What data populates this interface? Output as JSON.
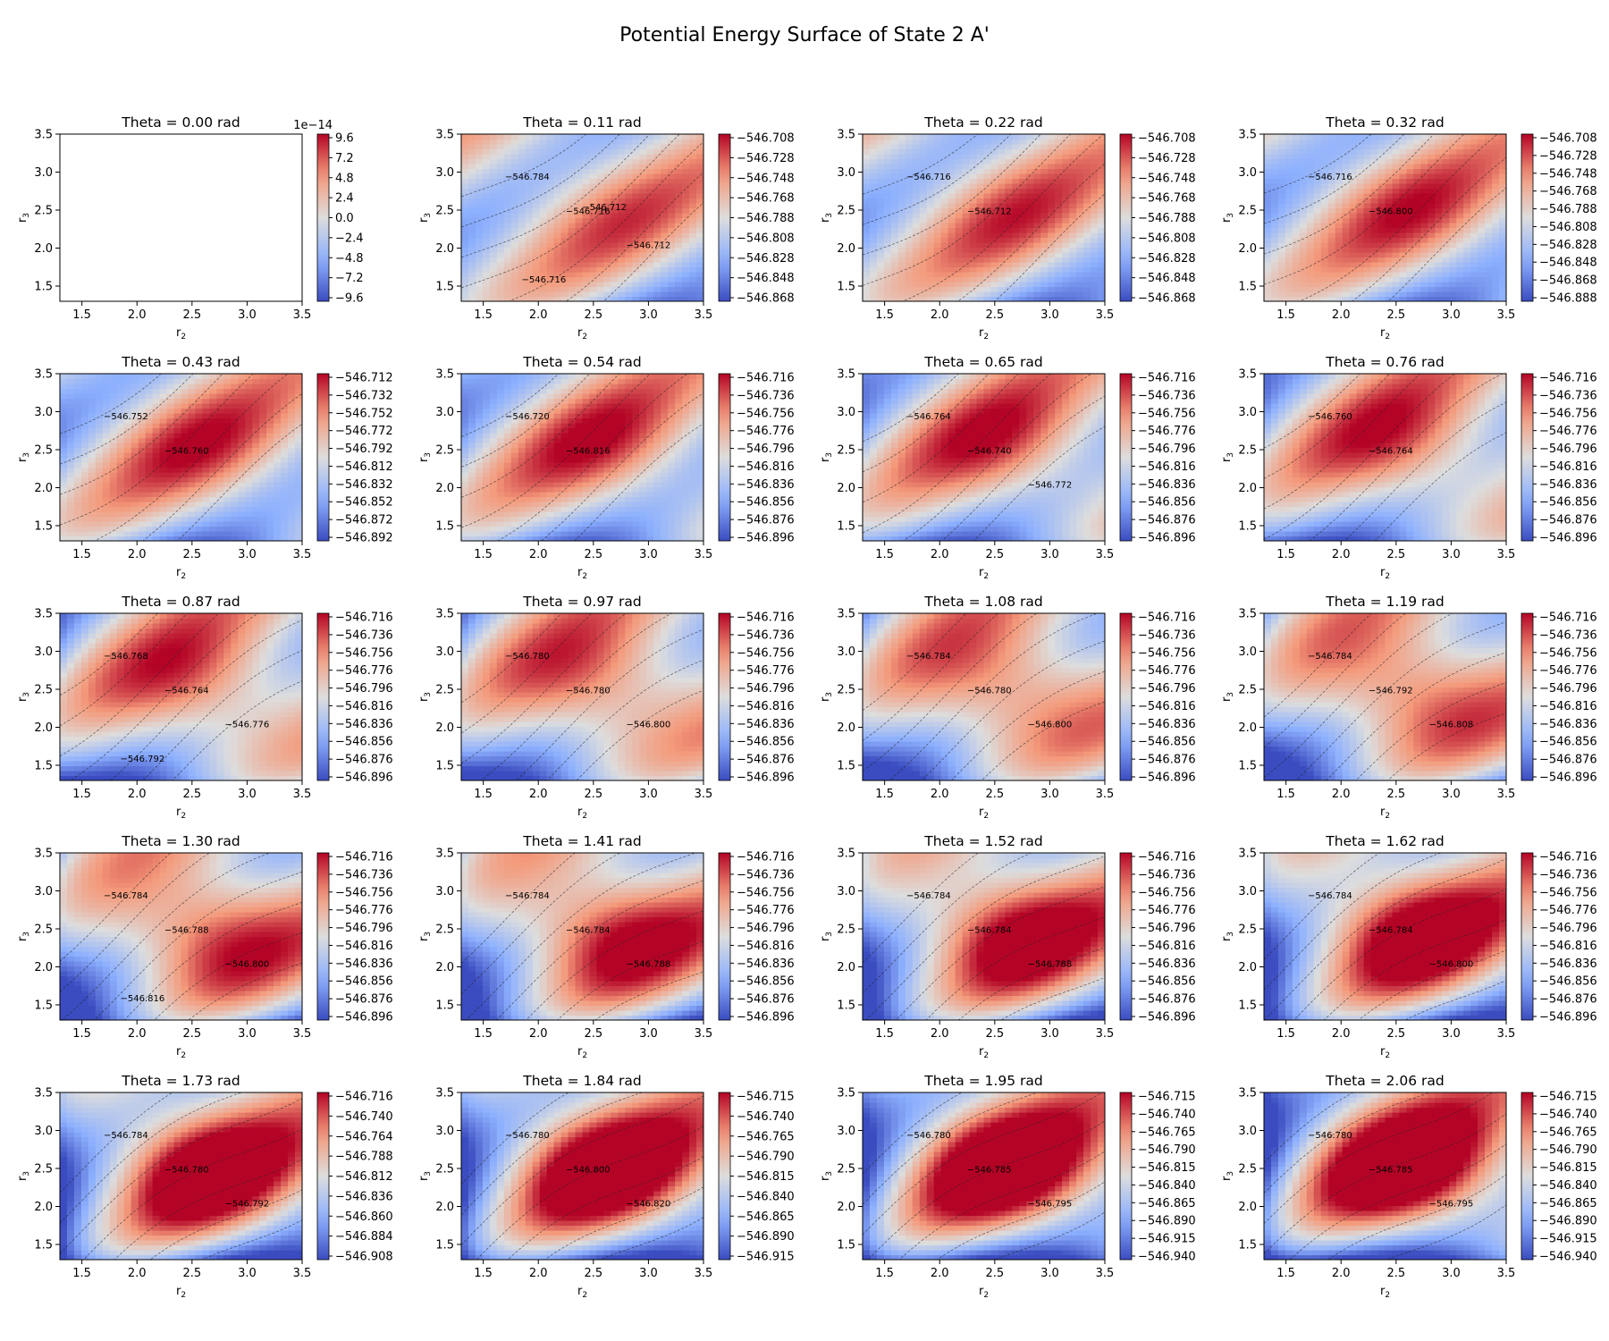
{
  "title": "Potential Energy Surface of State 2 A'",
  "chart_data": {
    "type": "heatmap",
    "title": "Potential Energy Surface of State 2 A'",
    "xlabel": "r2",
    "ylabel": "r3",
    "xlim": [
      1.3,
      3.5
    ],
    "ylim": [
      1.3,
      3.5
    ],
    "x_ticks": [
      "1.5",
      "2.0",
      "2.5",
      "3.0",
      "3.5"
    ],
    "y_ticks": [
      "1.5",
      "2.0",
      "2.5",
      "3.0",
      "3.5"
    ],
    "colormap": "coolwarm",
    "colors": {
      "low": "#3b4cc0",
      "mid": "#dddddd",
      "high": "#b40426",
      "nodata": "#ffffff"
    },
    "panels": [
      {
        "title": "Theta = 0.00 rad",
        "theta": 0.0,
        "cbar_offset": "1e−14",
        "cbar_ticks": [
          "9.6",
          "7.2",
          "4.8",
          "2.4",
          "0.0",
          "−2.4",
          "−4.8",
          "−7.2",
          "−9.6"
        ]
      },
      {
        "title": "Theta = 0.11 rad",
        "theta": 0.11,
        "cbar_ticks": [
          "−546.708",
          "−546.728",
          "−546.748",
          "−546.768",
          "−546.788",
          "−546.808",
          "−546.828",
          "−546.848",
          "−546.868"
        ],
        "contour_labels": [
          "−546.784",
          "−546.716",
          "−546.712",
          "−546.716",
          "−546.712"
        ]
      },
      {
        "title": "Theta = 0.22 rad",
        "theta": 0.22,
        "cbar_ticks": [
          "−546.708",
          "−546.728",
          "−546.748",
          "−546.768",
          "−546.788",
          "−546.808",
          "−546.828",
          "−546.848",
          "−546.868"
        ],
        "contour_labels": [
          "−546.716",
          "−546.712"
        ]
      },
      {
        "title": "Theta = 0.32 rad",
        "theta": 0.32,
        "cbar_ticks": [
          "−546.708",
          "−546.728",
          "−546.748",
          "−546.768",
          "−546.788",
          "−546.808",
          "−546.828",
          "−546.848",
          "−546.868",
          "−546.888"
        ],
        "contour_labels": [
          "−546.716",
          "−546.800"
        ]
      },
      {
        "title": "Theta = 0.43 rad",
        "theta": 0.43,
        "cbar_ticks": [
          "−546.712",
          "−546.732",
          "−546.752",
          "−546.772",
          "−546.792",
          "−546.812",
          "−546.832",
          "−546.852",
          "−546.872",
          "−546.892"
        ],
        "contour_labels": [
          "−546.752",
          "−546.760"
        ]
      },
      {
        "title": "Theta = 0.54 rad",
        "theta": 0.54,
        "cbar_ticks": [
          "−546.716",
          "−546.736",
          "−546.756",
          "−546.776",
          "−546.796",
          "−546.816",
          "−546.836",
          "−546.856",
          "−546.876",
          "−546.896"
        ],
        "contour_labels": [
          "−546.720",
          "−546.816"
        ]
      },
      {
        "title": "Theta = 0.65 rad",
        "theta": 0.65,
        "cbar_ticks": [
          "−546.716",
          "−546.736",
          "−546.756",
          "−546.776",
          "−546.796",
          "−546.816",
          "−546.836",
          "−546.856",
          "−546.876",
          "−546.896"
        ],
        "contour_labels": [
          "−546.764",
          "−546.740",
          "−546.772"
        ]
      },
      {
        "title": "Theta = 0.76 rad",
        "theta": 0.76,
        "cbar_ticks": [
          "−546.716",
          "−546.736",
          "−546.756",
          "−546.776",
          "−546.796",
          "−546.816",
          "−546.836",
          "−546.856",
          "−546.876",
          "−546.896"
        ],
        "contour_labels": [
          "−546.760",
          "−546.764"
        ]
      },
      {
        "title": "Theta = 0.87 rad",
        "theta": 0.87,
        "cbar_ticks": [
          "−546.716",
          "−546.736",
          "−546.756",
          "−546.776",
          "−546.796",
          "−546.816",
          "−546.836",
          "−546.856",
          "−546.876",
          "−546.896"
        ],
        "contour_labels": [
          "−546.768",
          "−546.764",
          "−546.776",
          "−546.792"
        ]
      },
      {
        "title": "Theta = 0.97 rad",
        "theta": 0.97,
        "cbar_ticks": [
          "−546.716",
          "−546.736",
          "−546.756",
          "−546.776",
          "−546.796",
          "−546.816",
          "−546.836",
          "−546.856",
          "−546.876",
          "−546.896"
        ],
        "contour_labels": [
          "−546.780",
          "−546.780",
          "−546.800"
        ]
      },
      {
        "title": "Theta = 1.08 rad",
        "theta": 1.08,
        "cbar_ticks": [
          "−546.716",
          "−546.736",
          "−546.756",
          "−546.776",
          "−546.796",
          "−546.816",
          "−546.836",
          "−546.856",
          "−546.876",
          "−546.896"
        ],
        "contour_labels": [
          "−546.784",
          "−546.780",
          "−546.800"
        ]
      },
      {
        "title": "Theta = 1.19 rad",
        "theta": 1.19,
        "cbar_ticks": [
          "−546.716",
          "−546.736",
          "−546.756",
          "−546.776",
          "−546.796",
          "−546.816",
          "−546.836",
          "−546.856",
          "−546.876",
          "−546.896"
        ],
        "contour_labels": [
          "−546.784",
          "−546.792",
          "−546.808"
        ]
      },
      {
        "title": "Theta = 1.30 rad",
        "theta": 1.3,
        "cbar_ticks": [
          "−546.716",
          "−546.736",
          "−546.756",
          "−546.776",
          "−546.796",
          "−546.816",
          "−546.836",
          "−546.856",
          "−546.876",
          "−546.896"
        ],
        "contour_labels": [
          "−546.784",
          "−546.788",
          "−546.800",
          "−546.816"
        ]
      },
      {
        "title": "Theta = 1.41 rad",
        "theta": 1.41,
        "cbar_ticks": [
          "−546.716",
          "−546.736",
          "−546.756",
          "−546.776",
          "−546.796",
          "−546.816",
          "−546.836",
          "−546.856",
          "−546.876",
          "−546.896"
        ],
        "contour_labels": [
          "−546.784",
          "−546.784",
          "−546.788"
        ]
      },
      {
        "title": "Theta = 1.52 rad",
        "theta": 1.52,
        "cbar_ticks": [
          "−546.716",
          "−546.736",
          "−546.756",
          "−546.776",
          "−546.796",
          "−546.816",
          "−546.836",
          "−546.856",
          "−546.876",
          "−546.896"
        ],
        "contour_labels": [
          "−546.784",
          "−546.784",
          "−546.788"
        ]
      },
      {
        "title": "Theta = 1.62 rad",
        "theta": 1.62,
        "cbar_ticks": [
          "−546.716",
          "−546.736",
          "−546.756",
          "−546.776",
          "−546.796",
          "−546.816",
          "−546.836",
          "−546.856",
          "−546.876",
          "−546.896"
        ],
        "contour_labels": [
          "−546.784",
          "−546.784",
          "−546.800"
        ]
      },
      {
        "title": "Theta = 1.73 rad",
        "theta": 1.73,
        "cbar_ticks": [
          "−546.716",
          "−546.740",
          "−546.764",
          "−546.788",
          "−546.812",
          "−546.836",
          "−546.860",
          "−546.884",
          "−546.908"
        ],
        "contour_labels": [
          "−546.784",
          "−546.780",
          "−546.792"
        ]
      },
      {
        "title": "Theta = 1.84 rad",
        "theta": 1.84,
        "cbar_ticks": [
          "−546.715",
          "−546.740",
          "−546.765",
          "−546.790",
          "−546.815",
          "−546.840",
          "−546.865",
          "−546.890",
          "−546.915"
        ],
        "contour_labels": [
          "−546.780",
          "−546.800",
          "−546.820"
        ]
      },
      {
        "title": "Theta = 1.95 rad",
        "theta": 1.95,
        "cbar_ticks": [
          "−546.715",
          "−546.740",
          "−546.765",
          "−546.790",
          "−546.815",
          "−546.840",
          "−546.865",
          "−546.890",
          "−546.915",
          "−546.940"
        ],
        "contour_labels": [
          "−546.780",
          "−546.785",
          "−546.795"
        ]
      },
      {
        "title": "Theta = 2.06 rad",
        "theta": 2.06,
        "cbar_ticks": [
          "−546.715",
          "−546.740",
          "−546.765",
          "−546.790",
          "−546.815",
          "−546.840",
          "−546.865",
          "−546.890",
          "−546.915",
          "−546.940"
        ],
        "contour_labels": [
          "−546.780",
          "−546.785",
          "−546.795"
        ]
      }
    ]
  }
}
